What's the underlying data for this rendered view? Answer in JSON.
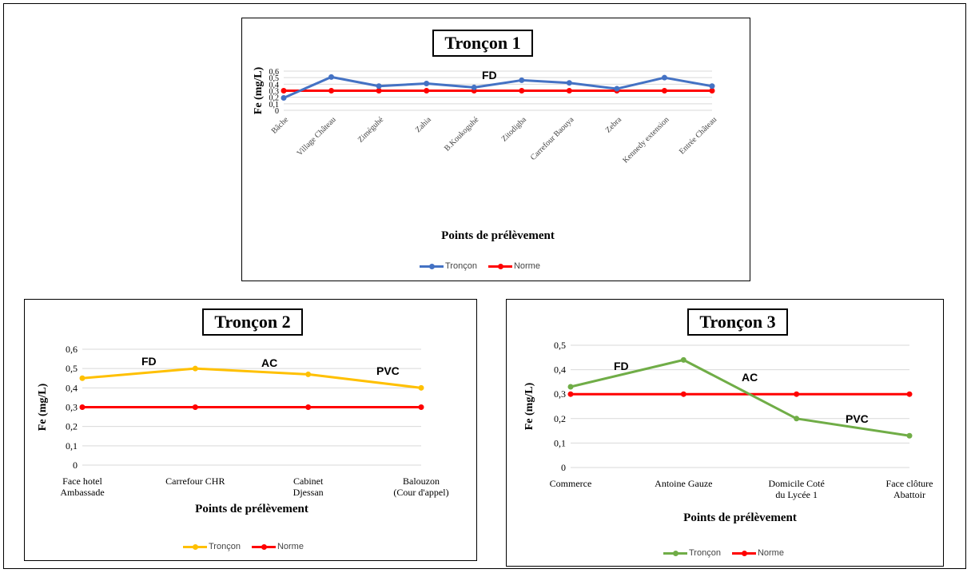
{
  "chart_data": [
    {
      "type": "line",
      "title": "Tronçon 1",
      "xlabel": "Points de prélèvement",
      "ylabel": "Fe (mg/L)",
      "ylim": [
        0,
        0.6
      ],
      "yticks": [
        "0",
        "0,1",
        "0,2",
        "0,3",
        "0,4",
        "0,5",
        "0,6"
      ],
      "categories": [
        "Bâche",
        "Village Château",
        "Ziméguhé",
        "Zahia",
        "B.Koukoguhé",
        "Zitodigba",
        "Carrefour Baouya",
        "Zebra",
        "Kennedy extension",
        "Entrée Château"
      ],
      "series": [
        {
          "name": "Tronçon",
          "color": "#4472C4",
          "values": [
            0.19,
            0.51,
            0.37,
            0.41,
            0.35,
            0.46,
            0.42,
            0.33,
            0.5,
            0.37
          ]
        },
        {
          "name": "Norme",
          "color": "#FF0000",
          "values": [
            0.3,
            0.3,
            0.3,
            0.3,
            0.3,
            0.3,
            0.3,
            0.3,
            0.3,
            0.3
          ]
        }
      ],
      "annotations": [
        "FD"
      ],
      "grid": true,
      "legend": "bottom"
    },
    {
      "type": "line",
      "title": "Tronçon 2",
      "xlabel": "Points de prélèvement",
      "ylabel": "Fe (mg/L)",
      "ylim": [
        0,
        0.6
      ],
      "yticks": [
        "0",
        "0,1",
        "0,2",
        "0,3",
        "0,4",
        "0,5",
        "0,6"
      ],
      "categories": [
        "Face hotel Ambassade",
        "Carrefour CHR",
        "Cabinet Djessan",
        "Balouzon (Cour d'appel)"
      ],
      "series": [
        {
          "name": "Tronçon",
          "color": "#FFC000",
          "values": [
            0.45,
            0.5,
            0.47,
            0.4
          ]
        },
        {
          "name": "Norme",
          "color": "#FF0000",
          "values": [
            0.3,
            0.3,
            0.3,
            0.3
          ]
        }
      ],
      "annotations": [
        "FD",
        "AC",
        "PVC"
      ],
      "grid": true,
      "legend": "bottom"
    },
    {
      "type": "line",
      "title": "Tronçon 3",
      "xlabel": "Points de prélèvement",
      "ylabel": "Fe (mg/L)",
      "ylim": [
        0,
        0.5
      ],
      "yticks": [
        "0",
        "0,1",
        "0,2",
        "0,3",
        "0,4",
        "0,5"
      ],
      "categories": [
        "Commerce",
        "Antoine Gauze",
        "Domicile Coté du Lycée 1",
        "Face clôture Abattoir"
      ],
      "series": [
        {
          "name": "Tronçon",
          "color": "#70AD47",
          "values": [
            0.33,
            0.44,
            0.2,
            0.13
          ]
        },
        {
          "name": "Norme",
          "color": "#FF0000",
          "values": [
            0.3,
            0.3,
            0.3,
            0.3
          ]
        }
      ],
      "annotations": [
        "FD",
        "AC",
        "PVC"
      ],
      "grid": true,
      "legend": "bottom"
    }
  ]
}
